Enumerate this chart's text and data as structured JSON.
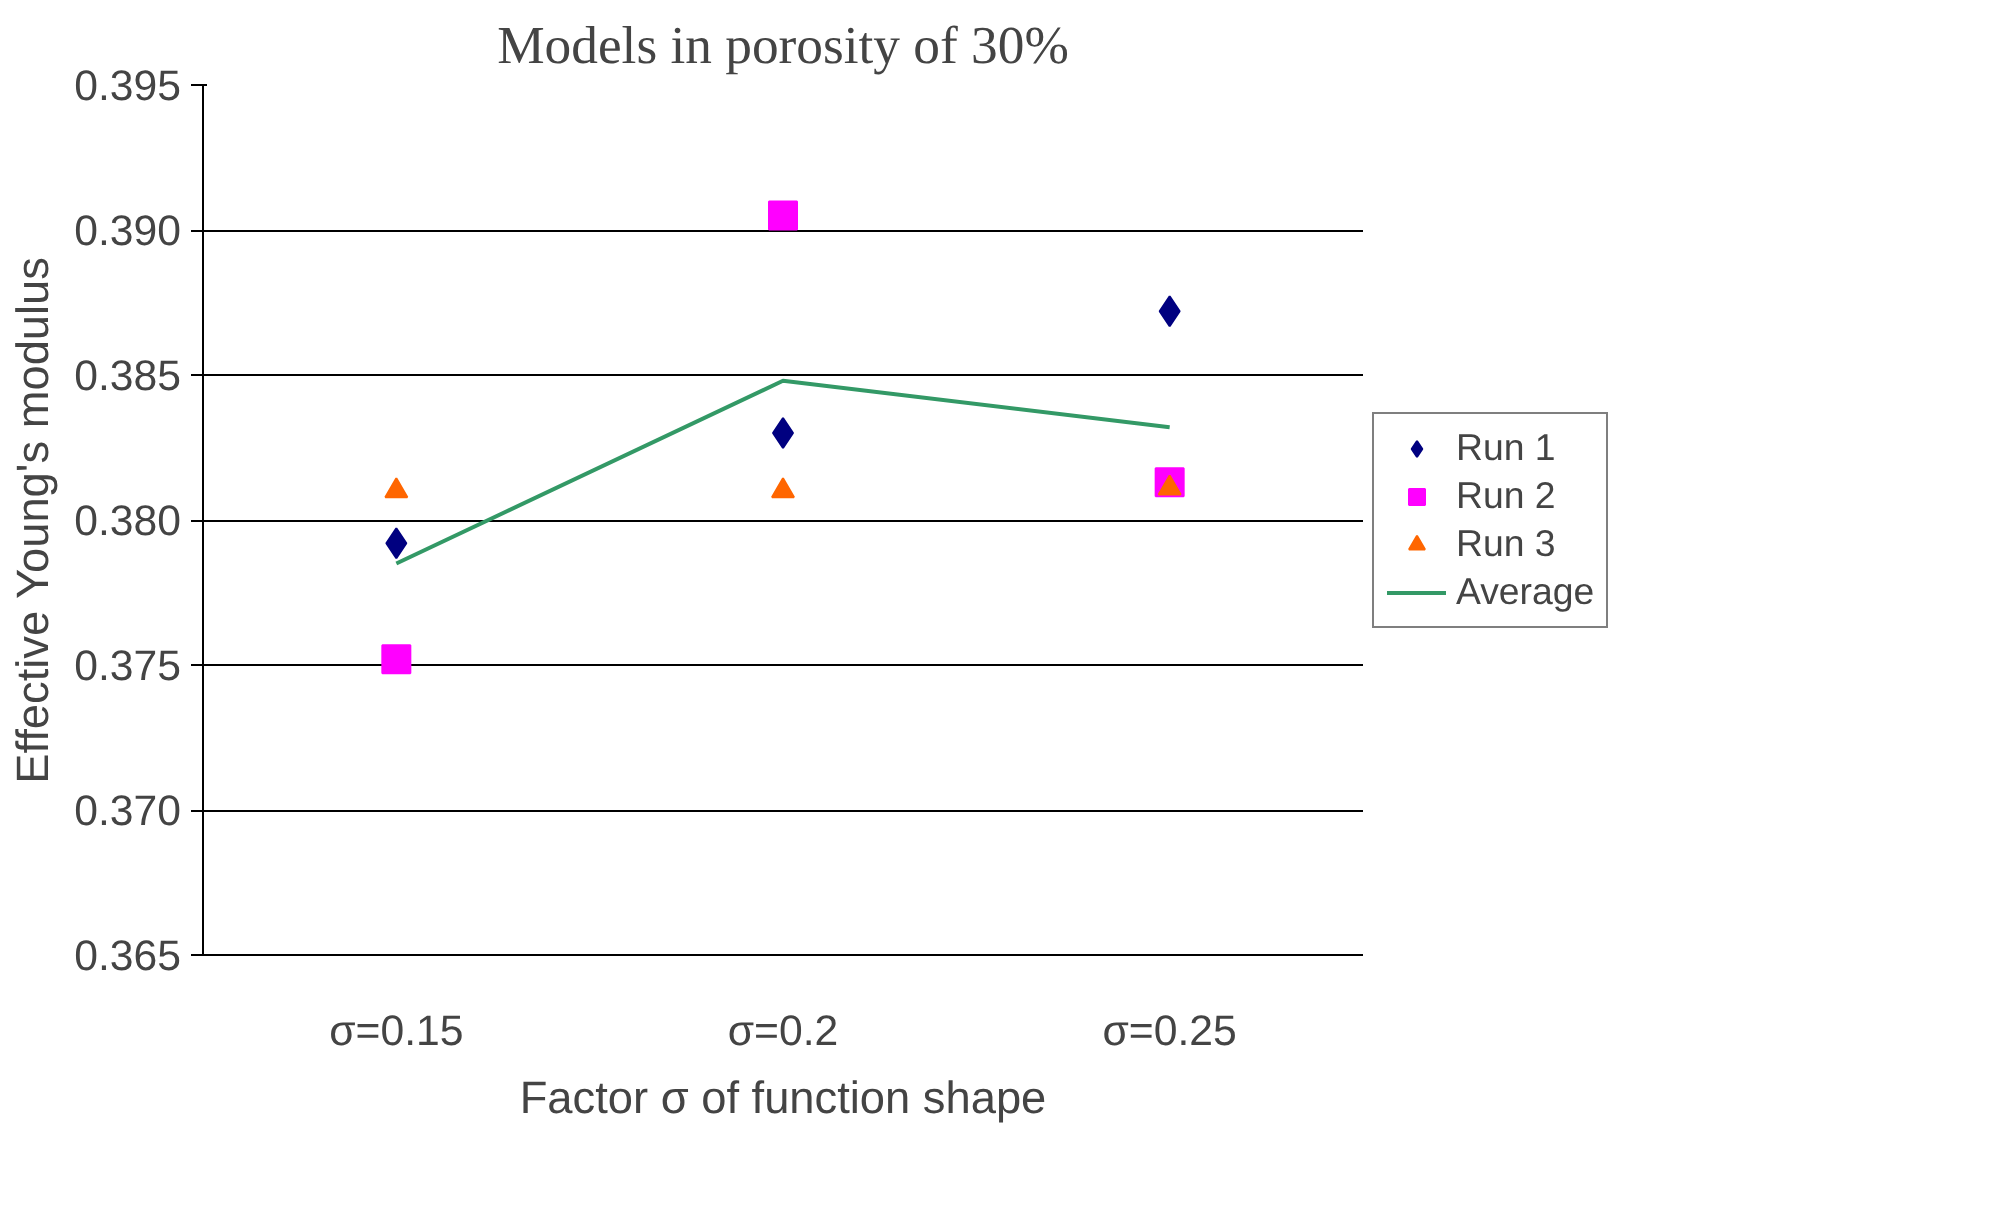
{
  "chart_data": {
    "type": "scatter",
    "title": "Models in porosity of 30%",
    "xlabel": "Factor σ of function shape",
    "ylabel": "Effective Young's modulus",
    "categories": [
      "σ=0.15",
      "σ=0.2",
      "σ=0.25"
    ],
    "series": [
      {
        "name": "Run 1",
        "color": "#000080",
        "marker": "diamond",
        "values": [
          0.3792,
          0.383,
          0.3872
        ]
      },
      {
        "name": "Run 2",
        "color": "#ff00ff",
        "marker": "square",
        "values": [
          0.3752,
          0.3905,
          0.3813
        ]
      },
      {
        "name": "Run 3",
        "color": "#ff6600",
        "marker": "triangle",
        "values": [
          0.381,
          0.381,
          0.3811
        ]
      },
      {
        "name": "Average",
        "color": "#339966",
        "type": "line",
        "marker": "none",
        "values": [
          0.3785,
          0.3848,
          0.3832
        ]
      }
    ],
    "ylim": [
      0.365,
      0.395
    ],
    "yticks": [
      0.365,
      {
        "value": 0.37,
        "label": "0.370"
      },
      0.375,
      {
        "value": 0.38,
        "label": "0.380"
      },
      0.385,
      {
        "value": 0.39,
        "label": "0.390"
      },
      0.395
    ],
    "grid": "y",
    "legend": "right"
  }
}
